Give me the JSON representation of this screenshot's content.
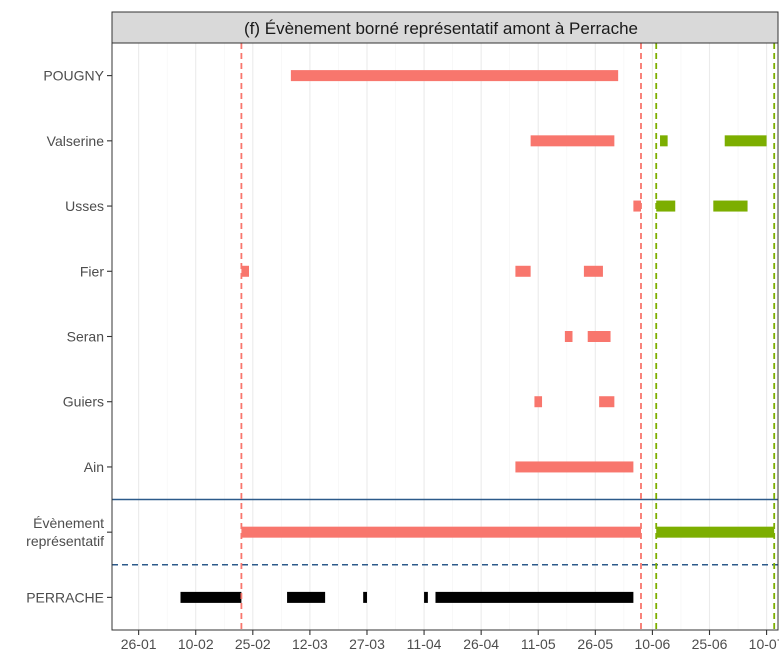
{
  "chart_data": {
    "type": "gantt",
    "title": "(f) Évènement borné représentatif amont à Perrache",
    "xlabel": "",
    "ylabel": "",
    "x_ticks": [
      "26-01",
      "10-02",
      "25-02",
      "12-03",
      "27-03",
      "11-04",
      "26-04",
      "11-05",
      "26-05",
      "10-06",
      "25-06",
      "10-07"
    ],
    "x_range_days": [
      -7,
      168
    ],
    "x_day_zero": "26-01",
    "grid": true,
    "rows": [
      {
        "label": "POUGNY",
        "intervals": [
          {
            "start": 40,
            "end": 126,
            "group": "red"
          }
        ]
      },
      {
        "label": "Valserine",
        "intervals": [
          {
            "start": 103,
            "end": 125,
            "group": "red"
          },
          {
            "start": 137,
            "end": 139,
            "group": "green"
          },
          {
            "start": 154,
            "end": 165,
            "group": "green"
          }
        ]
      },
      {
        "label": "Usses",
        "intervals": [
          {
            "start": 130,
            "end": 132,
            "group": "red"
          },
          {
            "start": 136,
            "end": 141,
            "group": "green"
          },
          {
            "start": 151,
            "end": 160,
            "group": "green"
          }
        ]
      },
      {
        "label": "Fier",
        "intervals": [
          {
            "start": 27,
            "end": 29,
            "group": "red"
          },
          {
            "start": 99,
            "end": 103,
            "group": "red"
          },
          {
            "start": 117,
            "end": 122,
            "group": "red"
          }
        ]
      },
      {
        "label": "Seran",
        "intervals": [
          {
            "start": 112,
            "end": 114,
            "group": "red"
          },
          {
            "start": 118,
            "end": 124,
            "group": "red"
          }
        ]
      },
      {
        "label": "Guiers",
        "intervals": [
          {
            "start": 104,
            "end": 106,
            "group": "red"
          },
          {
            "start": 121,
            "end": 125,
            "group": "red"
          }
        ]
      },
      {
        "label": "Ain",
        "intervals": [
          {
            "start": 99,
            "end": 130,
            "group": "red"
          }
        ]
      },
      {
        "label": "Évènement\nreprésentatif",
        "intervals": [
          {
            "start": 27,
            "end": 132,
            "group": "red"
          },
          {
            "start": 136,
            "end": 167,
            "group": "green"
          }
        ]
      },
      {
        "label": "PERRACHE",
        "intervals": [
          {
            "start": 11,
            "end": 27,
            "group": "black"
          },
          {
            "start": 39,
            "end": 49,
            "group": "black"
          },
          {
            "start": 59,
            "end": 60,
            "group": "black"
          },
          {
            "start": 75,
            "end": 76,
            "group": "black"
          },
          {
            "start": 78,
            "end": 130,
            "group": "black"
          }
        ]
      }
    ],
    "vlines": [
      {
        "x": 27,
        "color": "#f8766d",
        "style": "dashed"
      },
      {
        "x": 132,
        "color": "#f8766d",
        "style": "dashed"
      },
      {
        "x": 136,
        "color": "#7cae00",
        "style": "dashed"
      },
      {
        "x": 167,
        "color": "#7cae00",
        "style": "dashed"
      }
    ],
    "hlines": [
      {
        "between_rows": [
          6,
          7
        ],
        "color": "#2c5a8a",
        "style": "solid"
      },
      {
        "between_rows": [
          7,
          8
        ],
        "color": "#2c5a8a",
        "style": "dashed"
      }
    ],
    "colors": {
      "red": "#f8766d",
      "green": "#7cae00",
      "black": "#000000",
      "panel_strip": "#d9d9d9",
      "grid": "#ebebeb",
      "axis_text": "#4d4d4d"
    }
  }
}
